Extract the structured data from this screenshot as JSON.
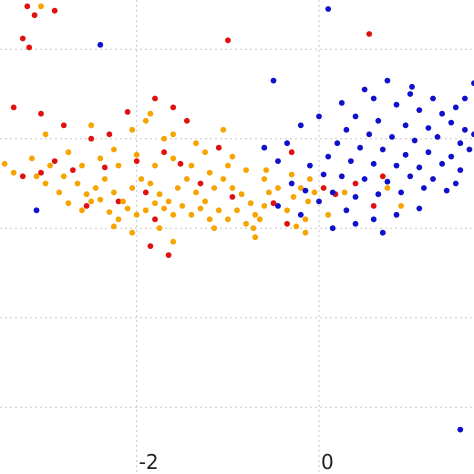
{
  "chart_data": {
    "type": "scatter",
    "title": "",
    "xlabel": "",
    "ylabel": "",
    "grid": true,
    "xlim": [
      -3.5,
      1.7
    ],
    "ylim": [
      -3.5,
      1.55
    ],
    "x_ticks": [
      -2,
      0
    ],
    "x_tick_labels": [
      "-2",
      "0"
    ],
    "y_gridlines": [
      1,
      0,
      -1,
      -2,
      -3
    ],
    "colors": {
      "red": "#e01010",
      "orange": "#f5a400",
      "blue": "#1010cc"
    },
    "series": [
      {
        "color": "red",
        "points": [
          [
            -3.2,
            1.48
          ],
          [
            -3.12,
            1.38
          ],
          [
            -2.9,
            1.43
          ],
          [
            -3.25,
            1.12
          ],
          [
            -3.18,
            1.02
          ],
          [
            -1.0,
            1.1
          ],
          [
            0.55,
            1.17
          ],
          [
            0.95,
            1.7
          ],
          [
            -3.35,
            0.35
          ],
          [
            -3.05,
            0.28
          ],
          [
            -2.8,
            0.15
          ],
          [
            -2.5,
            0.0
          ],
          [
            -2.3,
            0.05
          ],
          [
            -2.1,
            0.3
          ],
          [
            -1.8,
            0.45
          ],
          [
            -1.6,
            0.35
          ],
          [
            -1.45,
            0.2
          ],
          [
            -2.9,
            -0.25
          ],
          [
            -2.7,
            -0.35
          ],
          [
            -2.35,
            -0.32
          ],
          [
            -2.0,
            -0.25
          ],
          [
            -1.7,
            -0.15
          ],
          [
            -1.52,
            -0.28
          ],
          [
            -3.25,
            -0.42
          ],
          [
            -3.05,
            -0.38
          ],
          [
            -2.55,
            -0.75
          ],
          [
            -2.2,
            -0.7
          ],
          [
            -1.9,
            -0.6
          ],
          [
            -1.3,
            -0.5
          ],
          [
            -1.1,
            -0.1
          ],
          [
            -0.95,
            -0.65
          ],
          [
            -1.8,
            -0.9
          ],
          [
            -1.85,
            -1.2
          ],
          [
            -1.65,
            -1.3
          ],
          [
            0.05,
            -0.55
          ],
          [
            0.18,
            -0.62
          ],
          [
            0.4,
            -0.5
          ],
          [
            0.7,
            -0.42
          ],
          [
            -0.3,
            -0.15
          ],
          [
            -0.5,
            -0.72
          ],
          [
            -0.35,
            -0.95
          ],
          [
            0.6,
            -0.75
          ]
        ]
      },
      {
        "color": "orange",
        "points": [
          [
            -3.05,
            1.48
          ],
          [
            -1.85,
            0.28
          ],
          [
            -2.25,
            -0.12
          ],
          [
            -1.6,
            0.05
          ],
          [
            -1.25,
            -0.15
          ],
          [
            -3.45,
            -0.28
          ],
          [
            -3.35,
            -0.38
          ],
          [
            -3.1,
            -0.42
          ],
          [
            -3.0,
            -0.5
          ],
          [
            -2.85,
            -0.6
          ],
          [
            -2.75,
            -0.72
          ],
          [
            -2.6,
            -0.8
          ],
          [
            -2.5,
            -0.7
          ],
          [
            -2.45,
            -0.55
          ],
          [
            -2.35,
            -0.45
          ],
          [
            -2.25,
            -0.6
          ],
          [
            -2.15,
            -0.7
          ],
          [
            -2.05,
            -0.55
          ],
          [
            -1.95,
            -0.45
          ],
          [
            -1.85,
            -0.5
          ],
          [
            -1.75,
            -0.62
          ],
          [
            -1.65,
            -0.7
          ],
          [
            -1.55,
            -0.55
          ],
          [
            -1.45,
            -0.45
          ],
          [
            -1.35,
            -0.6
          ],
          [
            -1.25,
            -0.7
          ],
          [
            -1.15,
            -0.55
          ],
          [
            -1.05,
            -0.45
          ],
          [
            -0.95,
            -0.55
          ],
          [
            -0.85,
            -0.62
          ],
          [
            -0.75,
            -0.72
          ],
          [
            -0.7,
            -0.85
          ],
          [
            -0.72,
            -1.0
          ],
          [
            -0.8,
            -0.95
          ],
          [
            -0.9,
            -0.8
          ],
          [
            -1.0,
            -0.9
          ],
          [
            -1.1,
            -0.8
          ],
          [
            -1.2,
            -0.9
          ],
          [
            -1.3,
            -0.78
          ],
          [
            -1.4,
            -0.85
          ],
          [
            -1.5,
            -0.75
          ],
          [
            -1.6,
            -0.85
          ],
          [
            -1.7,
            -0.78
          ],
          [
            -1.8,
            -0.72
          ],
          [
            -1.9,
            -0.8
          ],
          [
            -2.0,
            -0.85
          ],
          [
            -2.1,
            -0.78
          ],
          [
            -2.2,
            -0.9
          ],
          [
            -2.3,
            -0.82
          ],
          [
            -2.4,
            -0.68
          ],
          [
            -2.55,
            -0.62
          ],
          [
            -2.65,
            -0.5
          ],
          [
            -2.8,
            -0.42
          ],
          [
            -2.95,
            -0.3
          ],
          [
            -3.15,
            -0.22
          ],
          [
            -2.6,
            -0.3
          ],
          [
            -2.4,
            -0.22
          ],
          [
            -2.2,
            -0.3
          ],
          [
            -2.0,
            -0.18
          ],
          [
            -1.8,
            -0.3
          ],
          [
            -1.6,
            -0.22
          ],
          [
            -1.4,
            -0.3
          ],
          [
            -1.2,
            -0.38
          ],
          [
            -1.0,
            -0.3
          ],
          [
            -0.8,
            -0.35
          ],
          [
            -0.6,
            -0.45
          ],
          [
            -0.55,
            -0.6
          ],
          [
            -0.6,
            -0.75
          ],
          [
            -0.65,
            -0.9
          ],
          [
            -0.58,
            -0.35
          ],
          [
            -0.45,
            -0.55
          ],
          [
            -0.35,
            -0.8
          ],
          [
            -0.28,
            -0.65
          ],
          [
            -0.2,
            -0.55
          ],
          [
            -0.12,
            -0.7
          ],
          [
            -0.05,
            -0.6
          ],
          [
            -0.15,
            -0.9
          ],
          [
            -0.25,
            -0.98
          ],
          [
            -0.1,
            -0.45
          ],
          [
            -0.3,
            -0.4
          ],
          [
            -1.05,
            0.1
          ],
          [
            -1.9,
            0.2
          ],
          [
            -2.05,
            0.1
          ],
          [
            -2.5,
            0.15
          ],
          [
            -3.0,
            0.05
          ],
          [
            -2.75,
            -0.15
          ],
          [
            -1.7,
            0.0
          ],
          [
            -1.35,
            -0.05
          ],
          [
            -0.95,
            -0.2
          ],
          [
            -1.6,
            -1.15
          ],
          [
            -2.25,
            -0.98
          ],
          [
            -2.05,
            -1.05
          ],
          [
            -1.75,
            -1.0
          ],
          [
            -1.15,
            -1.0
          ],
          [
            -0.7,
            -1.1
          ],
          [
            0.9,
            -0.75
          ],
          [
            0.75,
            -0.55
          ],
          [
            0.28,
            -0.6
          ],
          [
            -0.15,
            -1.05
          ],
          [
            0.1,
            -0.85
          ]
        ]
      },
      {
        "color": "blue",
        "points": [
          [
            0.1,
            1.45
          ],
          [
            -2.4,
            1.05
          ],
          [
            -0.5,
            0.65
          ],
          [
            1.02,
            0.58
          ],
          [
            1.7,
            0.62
          ],
          [
            0.6,
            0.45
          ],
          [
            0.85,
            0.38
          ],
          [
            1.1,
            0.32
          ],
          [
            1.35,
            0.28
          ],
          [
            1.5,
            0.35
          ],
          [
            0.4,
            0.25
          ],
          [
            0.65,
            0.2
          ],
          [
            0.95,
            0.15
          ],
          [
            1.2,
            0.12
          ],
          [
            1.45,
            0.18
          ],
          [
            1.6,
            0.1
          ],
          [
            0.3,
            0.1
          ],
          [
            0.55,
            0.05
          ],
          [
            0.8,
            0.02
          ],
          [
            1.05,
            -0.02
          ],
          [
            1.3,
            0.02
          ],
          [
            1.55,
            -0.05
          ],
          [
            0.2,
            -0.05
          ],
          [
            0.45,
            -0.1
          ],
          [
            0.7,
            -0.12
          ],
          [
            0.95,
            -0.18
          ],
          [
            1.2,
            -0.15
          ],
          [
            1.45,
            -0.2
          ],
          [
            1.65,
            -0.12
          ],
          [
            0.1,
            -0.2
          ],
          [
            0.35,
            -0.25
          ],
          [
            0.6,
            -0.28
          ],
          [
            0.85,
            -0.3
          ],
          [
            1.1,
            -0.32
          ],
          [
            1.35,
            -0.28
          ],
          [
            1.55,
            -0.35
          ],
          [
            -0.1,
            -0.3
          ],
          [
            0.05,
            -0.4
          ],
          [
            0.25,
            -0.42
          ],
          [
            0.5,
            -0.45
          ],
          [
            0.75,
            -0.48
          ],
          [
            1.0,
            -0.42
          ],
          [
            1.25,
            -0.45
          ],
          [
            1.5,
            -0.5
          ],
          [
            -0.3,
            -0.5
          ],
          [
            -0.15,
            -0.58
          ],
          [
            0.15,
            -0.6
          ],
          [
            0.4,
            -0.65
          ],
          [
            0.65,
            -0.62
          ],
          [
            0.9,
            -0.6
          ],
          [
            1.15,
            -0.55
          ],
          [
            1.4,
            -0.58
          ],
          [
            -0.45,
            -0.25
          ],
          [
            -0.6,
            -0.1
          ],
          [
            -0.35,
            -0.05
          ],
          [
            -0.2,
            0.15
          ],
          [
            0.0,
            0.25
          ],
          [
            0.25,
            0.4
          ],
          [
            0.5,
            0.55
          ],
          [
            0.75,
            0.65
          ],
          [
            1.0,
            0.5
          ],
          [
            1.25,
            0.45
          ],
          [
            1.6,
            0.45
          ],
          [
            0.0,
            -0.7
          ],
          [
            0.3,
            -0.8
          ],
          [
            0.6,
            -0.9
          ],
          [
            0.85,
            -0.85
          ],
          [
            1.1,
            -0.78
          ],
          [
            0.15,
            -1.0
          ],
          [
            0.4,
            -0.95
          ],
          [
            0.7,
            -1.05
          ],
          [
            -0.2,
            -0.85
          ],
          [
            -0.45,
            -0.75
          ],
          [
            1.75,
            -0.25
          ],
          [
            1.7,
            0.05
          ],
          [
            -3.1,
            -0.8
          ],
          [
            1.55,
            -3.25
          ]
        ]
      }
    ]
  }
}
